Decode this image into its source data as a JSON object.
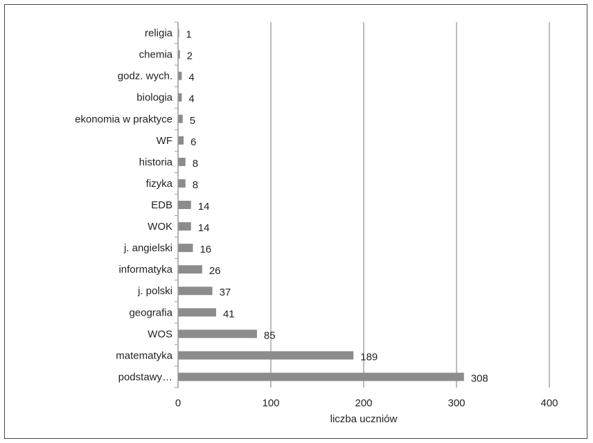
{
  "chart_data": {
    "type": "bar",
    "orientation": "horizontal",
    "categories": [
      "religia",
      "chemia",
      "godz. wych.",
      "biologia",
      "ekonomia w praktyce",
      "WF",
      "historia",
      "fizyka",
      "EDB",
      "WOK",
      "j. angielski",
      "informatyka",
      "j. polski",
      "geografia",
      "WOS",
      "matematyka",
      "podstawy…"
    ],
    "values": [
      1,
      2,
      4,
      4,
      5,
      6,
      8,
      8,
      14,
      14,
      16,
      26,
      37,
      41,
      85,
      189,
      308
    ],
    "xlabel": "liczba uczniów",
    "ylabel": "",
    "xlim": [
      0,
      400
    ],
    "xticks": [
      "0",
      "100",
      "200",
      "300",
      "400"
    ],
    "grid": "vertical",
    "bar_color": "#8c8c8c",
    "grid_color": "#a6a6a6",
    "data_labels": true
  }
}
